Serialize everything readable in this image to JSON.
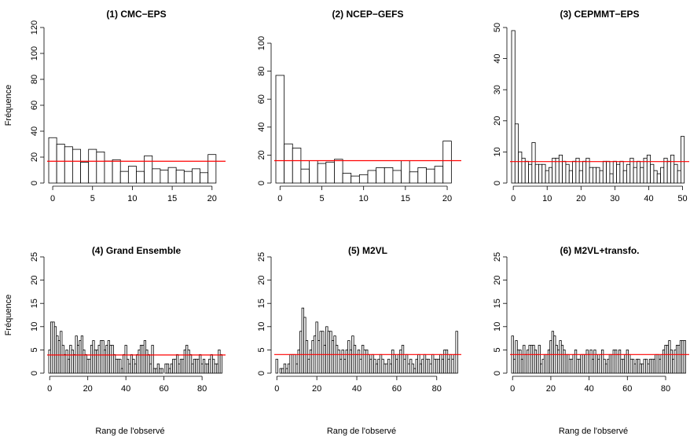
{
  "colors": {
    "bar_fill": "#ffffff",
    "bar_stroke": "#000000",
    "reference_line": "#ff0000",
    "axis": "#000000"
  },
  "chart_data": [
    {
      "type": "bar",
      "title": "(1) CMC−EPS",
      "xlabel": "",
      "ylabel": "Fréquence",
      "xticks": [
        0,
        5,
        10,
        15,
        20
      ],
      "yticks": [
        0,
        20,
        40,
        60,
        80,
        100,
        120
      ],
      "ylim": [
        0,
        120
      ],
      "xlim": [
        -0.5,
        21.5
      ],
      "reference": 16.8,
      "values": [
        35,
        30,
        28,
        26,
        16,
        26,
        24,
        17,
        18,
        9,
        13,
        9,
        21,
        11,
        10,
        12,
        10,
        9,
        11,
        8,
        22
      ]
    },
    {
      "type": "bar",
      "title": "(2) NCEP−GEFS",
      "xlabel": "",
      "ylabel": "",
      "xticks": [
        0,
        5,
        10,
        15,
        20
      ],
      "yticks": [
        0,
        20,
        40,
        60,
        80,
        100
      ],
      "ylim": [
        0,
        100
      ],
      "xlim": [
        -0.5,
        21.5
      ],
      "reference": 16,
      "values": [
        77,
        28,
        25,
        10,
        16,
        14,
        15,
        17,
        7,
        5,
        6,
        9,
        11,
        11,
        9,
        16,
        8,
        11,
        10,
        12,
        30
      ]
    },
    {
      "type": "bar",
      "title": "(3) CEPMMT−EPS",
      "xlabel": "",
      "ylabel": "",
      "xticks": [
        0,
        10,
        20,
        30,
        40,
        50
      ],
      "yticks": [
        0,
        10,
        20,
        30,
        40,
        50
      ],
      "ylim": [
        0,
        50
      ],
      "xlim": [
        -0.5,
        51.5
      ],
      "reference": 6.9,
      "values": [
        49,
        19,
        10,
        8,
        7,
        6,
        13,
        6,
        6,
        6,
        4,
        5,
        8,
        8,
        9,
        7,
        6,
        4,
        7,
        8,
        4,
        7,
        8,
        5,
        5,
        5,
        4,
        7,
        7,
        3,
        7,
        6,
        7,
        4,
        6,
        8,
        5,
        7,
        5,
        8,
        9,
        6,
        4,
        3,
        5,
        8,
        7,
        9,
        6,
        4,
        15
      ]
    },
    {
      "type": "bar",
      "title": "(4) Grand Ensemble",
      "xlabel": "Rang de l'observé",
      "ylabel": "Fréquence",
      "xticks": [
        0,
        20,
        40,
        60,
        80
      ],
      "yticks": [
        0,
        5,
        10,
        15,
        20,
        25
      ],
      "ylim": [
        0,
        25
      ],
      "xlim": [
        -0.5,
        91.5
      ],
      "reference": 3.9,
      "values": [
        5,
        11,
        11,
        10,
        8,
        7,
        9,
        6,
        4,
        5,
        3,
        6,
        5,
        4,
        8,
        6,
        7,
        8,
        5,
        4,
        3,
        3,
        6,
        7,
        5,
        5,
        6,
        7,
        7,
        5,
        6,
        7,
        6,
        6,
        4,
        3,
        3,
        3,
        1,
        4,
        6,
        3,
        2,
        4,
        3,
        2,
        4,
        5,
        6,
        6,
        7,
        5,
        4,
        2,
        6,
        1,
        1,
        2,
        1,
        1,
        0,
        2,
        2,
        1,
        2,
        3,
        3,
        4,
        2,
        3,
        3,
        5,
        6,
        5,
        4,
        2,
        3,
        3,
        3,
        4,
        2,
        3,
        2,
        2,
        3,
        4,
        3,
        2,
        2,
        5,
        4
      ]
    },
    {
      "type": "bar",
      "title": "(5) M2VL",
      "xlabel": "Rang de l'observé",
      "ylabel": "",
      "xticks": [
        0,
        20,
        40,
        60,
        80
      ],
      "yticks": [
        0,
        5,
        10,
        15,
        20,
        25
      ],
      "ylim": [
        0,
        25
      ],
      "xlim": [
        -0.5,
        91.5
      ],
      "reference": 4,
      "values": [
        3,
        0,
        1,
        1,
        2,
        1,
        2,
        4,
        4,
        4,
        2,
        5,
        9,
        14,
        12,
        7,
        3,
        5,
        7,
        8,
        11,
        7,
        9,
        9,
        6,
        10,
        9,
        9,
        7,
        8,
        6,
        5,
        3,
        5,
        3,
        5,
        7,
        5,
        8,
        6,
        4,
        5,
        3,
        6,
        5,
        5,
        4,
        3,
        4,
        3,
        2,
        3,
        4,
        3,
        2,
        2,
        3,
        2,
        5,
        4,
        3,
        4,
        5,
        6,
        3,
        4,
        2,
        3,
        2,
        1,
        3,
        4,
        2,
        3,
        4,
        3,
        3,
        2,
        4,
        3,
        3,
        3,
        4,
        3,
        5,
        5,
        3,
        4,
        3,
        4,
        9
      ]
    },
    {
      "type": "bar",
      "title": "(6) M2VL+transfo.",
      "xlabel": "Rang de l'observé",
      "ylabel": "",
      "xticks": [
        0,
        20,
        40,
        60,
        80
      ],
      "yticks": [
        0,
        5,
        10,
        15,
        20,
        25
      ],
      "ylim": [
        0,
        25
      ],
      "xlim": [
        -0.5,
        91.5
      ],
      "reference": 4,
      "values": [
        8,
        3,
        7,
        5,
        5,
        3,
        6,
        4,
        5,
        6,
        6,
        6,
        5,
        4,
        6,
        2,
        3,
        4,
        4,
        5,
        7,
        9,
        8,
        6,
        5,
        7,
        6,
        5,
        4,
        4,
        3,
        3,
        4,
        5,
        3,
        3,
        4,
        4,
        4,
        5,
        4,
        5,
        3,
        5,
        4,
        3,
        4,
        5,
        3,
        2,
        3,
        4,
        4,
        5,
        5,
        4,
        5,
        3,
        3,
        4,
        5,
        4,
        3,
        3,
        2,
        3,
        3,
        2,
        2,
        3,
        3,
        2,
        3,
        3,
        3,
        4,
        4,
        3,
        4,
        5,
        6,
        6,
        7,
        5,
        3,
        5,
        6,
        6,
        7,
        7,
        7
      ]
    }
  ]
}
